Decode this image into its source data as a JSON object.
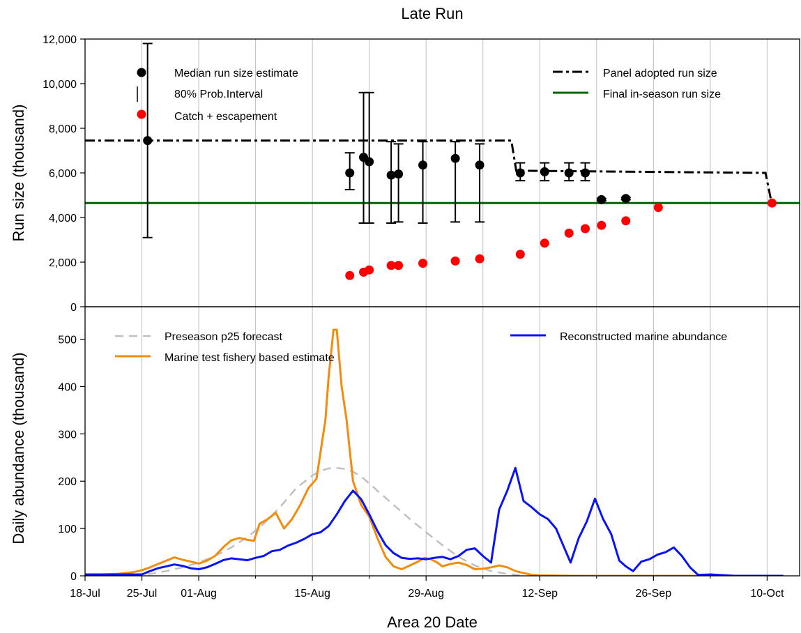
{
  "chart_data": {
    "title": "Late Run",
    "xlabel": "Area 20 Date",
    "x_ticks": [
      "18-Jul",
      "25-Jul",
      "01-Aug",
      "15-Aug",
      "29-Aug",
      "12-Sep",
      "26-Sep",
      "10-Oct"
    ],
    "x_tick_days": [
      0,
      7,
      14,
      28,
      42,
      56,
      70,
      84
    ],
    "x_range_days": [
      0,
      88
    ],
    "x_start_date": "18-Jul",
    "panels": [
      {
        "type": "errorbar-scatter-line",
        "ylabel": "Run size (thousand)",
        "ylim": [
          0,
          12000
        ],
        "y_ticks": [
          "0",
          "2,000",
          "4,000",
          "6,000",
          "8,000",
          "10,000",
          "12,000"
        ],
        "y_tick_values": [
          0,
          2000,
          4000,
          6000,
          8000,
          10000,
          12000
        ],
        "grid": "vertical",
        "legend_left": [
          "Median run size estimate",
          "80% Prob.Interval",
          "Catch + escapement"
        ],
        "legend_right": [
          "Panel adopted run size",
          "Final in-season run size"
        ],
        "median_estimates": [
          {
            "x": 7.7,
            "y": 7450,
            "lo": 3100,
            "hi": 11800
          },
          {
            "x": 32.6,
            "y": 6000,
            "lo": 5250,
            "hi": 6900
          },
          {
            "x": 34.3,
            "y": 6700,
            "lo": 3750,
            "hi": 9600
          },
          {
            "x": 35.0,
            "y": 6500,
            "lo": 3750,
            "hi": 9600
          },
          {
            "x": 37.7,
            "y": 5900,
            "lo": 3750,
            "hi": 7400
          },
          {
            "x": 38.6,
            "y": 5950,
            "lo": 3800,
            "hi": 7300
          },
          {
            "x": 41.6,
            "y": 6350,
            "lo": 3750,
            "hi": 7400
          },
          {
            "x": 45.6,
            "y": 6650,
            "lo": 3800,
            "hi": 7400
          },
          {
            "x": 48.6,
            "y": 6350,
            "lo": 3800,
            "hi": 7300
          },
          {
            "x": 53.6,
            "y": 6000,
            "lo": 5650,
            "hi": 6450
          },
          {
            "x": 56.6,
            "y": 6050,
            "lo": 5650,
            "hi": 6450
          },
          {
            "x": 59.6,
            "y": 6000,
            "lo": 5650,
            "hi": 6450
          },
          {
            "x": 61.6,
            "y": 6000,
            "lo": 5650,
            "hi": 6450
          },
          {
            "x": 63.6,
            "y": 4800,
            "lo": 4750,
            "hi": 4850
          },
          {
            "x": 66.6,
            "y": 4850,
            "lo": 4800,
            "hi": 4900
          }
        ],
        "catch_escapement": [
          {
            "x": 32.6,
            "y": 1400
          },
          {
            "x": 34.3,
            "y": 1550
          },
          {
            "x": 35.0,
            "y": 1650
          },
          {
            "x": 37.7,
            "y": 1850
          },
          {
            "x": 38.6,
            "y": 1850
          },
          {
            "x": 41.6,
            "y": 1950
          },
          {
            "x": 45.6,
            "y": 2050
          },
          {
            "x": 48.6,
            "y": 2150
          },
          {
            "x": 53.6,
            "y": 2350
          },
          {
            "x": 56.6,
            "y": 2850
          },
          {
            "x": 59.6,
            "y": 3300
          },
          {
            "x": 61.6,
            "y": 3500
          },
          {
            "x": 63.6,
            "y": 3650
          },
          {
            "x": 66.6,
            "y": 3850
          },
          {
            "x": 70.6,
            "y": 4450
          },
          {
            "x": 84.6,
            "y": 4650
          }
        ],
        "panel_adopted_run_size": [
          [
            0,
            7450
          ],
          [
            52.5,
            7450
          ],
          [
            53.1,
            6100
          ],
          [
            83.8,
            6000
          ],
          [
            84.5,
            4750
          ]
        ],
        "final_inseason_run_size": 4650
      },
      {
        "type": "line",
        "ylabel": "Daily abundance (thousand)",
        "ylim": [
          0,
          520
        ],
        "y_ticks": [
          "0",
          "100",
          "200",
          "300",
          "400",
          "500"
        ],
        "y_tick_values": [
          0,
          100,
          200,
          300,
          400,
          500
        ],
        "grid": "vertical",
        "series": [
          {
            "name": "Preseason p25 forecast",
            "color": "#c0c0c0",
            "dash": true,
            "points": [
              [
                6,
                2
              ],
              [
                8,
                4
              ],
              [
                10,
                10
              ],
              [
                12,
                18
              ],
              [
                14,
                28
              ],
              [
                16,
                42
              ],
              [
                18,
                60
              ],
              [
                20,
                82
              ],
              [
                22,
                110
              ],
              [
                24,
                145
              ],
              [
                26,
                185
              ],
              [
                28,
                212
              ],
              [
                29,
                222
              ],
              [
                30,
                227
              ],
              [
                31,
                228
              ],
              [
                32,
                226
              ],
              [
                33,
                220
              ],
              [
                34,
                210
              ],
              [
                36,
                180
              ],
              [
                38,
                150
              ],
              [
                40,
                120
              ],
              [
                42,
                92
              ],
              [
                44,
                65
              ],
              [
                46,
                40
              ],
              [
                48,
                22
              ],
              [
                50,
                10
              ],
              [
                52,
                4
              ],
              [
                54,
                1
              ]
            ]
          },
          {
            "name": "Marine test fishery based estimate",
            "color": "#f28c0f",
            "dash": false,
            "points": [
              [
                0,
                2
              ],
              [
                2,
                3
              ],
              [
                4,
                4
              ],
              [
                6,
                8
              ],
              [
                7,
                12
              ],
              [
                8,
                18
              ],
              [
                9,
                25
              ],
              [
                10,
                32
              ],
              [
                11,
                39
              ],
              [
                12,
                34
              ],
              [
                13,
                30
              ],
              [
                14,
                26
              ],
              [
                15,
                32
              ],
              [
                16,
                42
              ],
              [
                17,
                60
              ],
              [
                18,
                75
              ],
              [
                19,
                80
              ],
              [
                20,
                76
              ],
              [
                20.8,
                74
              ],
              [
                21.5,
                110
              ],
              [
                22.5,
                120
              ],
              [
                23.5,
                133
              ],
              [
                24.5,
                100
              ],
              [
                25.5,
                120
              ],
              [
                26.5,
                150
              ],
              [
                27.5,
                185
              ],
              [
                28.5,
                205
              ],
              [
                29.6,
                330
              ],
              [
                30,
                420
              ],
              [
                30.6,
                520
              ],
              [
                31,
                520
              ],
              [
                31.6,
                400
              ],
              [
                32.2,
                330
              ],
              [
                33,
                200
              ],
              [
                34,
                150
              ],
              [
                35,
                125
              ],
              [
                36,
                80
              ],
              [
                37,
                40
              ],
              [
                38,
                20
              ],
              [
                39,
                14
              ],
              [
                40,
                22
              ],
              [
                41,
                30
              ],
              [
                41.8,
                38
              ],
              [
                42.6,
                35
              ],
              [
                43.4,
                28
              ],
              [
                44,
                20
              ],
              [
                45,
                25
              ],
              [
                46,
                28
              ],
              [
                47,
                23
              ],
              [
                48,
                14
              ],
              [
                49,
                15
              ],
              [
                50,
                18
              ],
              [
                51,
                22
              ],
              [
                52,
                18
              ],
              [
                53,
                10
              ],
              [
                54,
                6
              ],
              [
                55,
                2
              ],
              [
                56,
                1
              ],
              [
                60,
                0
              ],
              [
                70,
                0
              ],
              [
                84,
                0
              ]
            ]
          },
          {
            "name": "Reconstructed marine abundance",
            "color": "#0a14f0",
            "dash": false,
            "points": [
              [
                0,
                3
              ],
              [
                5,
                3
              ],
              [
                7,
                3
              ],
              [
                8,
                10
              ],
              [
                9,
                16
              ],
              [
                10,
                20
              ],
              [
                11,
                24
              ],
              [
                12,
                21
              ],
              [
                13,
                16
              ],
              [
                14,
                14
              ],
              [
                15,
                18
              ],
              [
                16,
                25
              ],
              [
                17,
                33
              ],
              [
                18,
                37
              ],
              [
                19,
                35
              ],
              [
                20,
                33
              ],
              [
                21,
                38
              ],
              [
                22,
                42
              ],
              [
                23,
                52
              ],
              [
                24,
                55
              ],
              [
                25,
                64
              ],
              [
                26,
                70
              ],
              [
                27,
                78
              ],
              [
                28,
                88
              ],
              [
                29,
                92
              ],
              [
                30,
                105
              ],
              [
                31,
                130
              ],
              [
                32,
                158
              ],
              [
                33,
                180
              ],
              [
                34,
                162
              ],
              [
                35,
                130
              ],
              [
                36,
                95
              ],
              [
                37,
                65
              ],
              [
                38,
                48
              ],
              [
                39,
                38
              ],
              [
                40,
                36
              ],
              [
                41,
                37
              ],
              [
                42,
                35
              ],
              [
                43,
                38
              ],
              [
                44,
                40
              ],
              [
                45,
                35
              ],
              [
                46,
                42
              ],
              [
                47,
                55
              ],
              [
                48,
                58
              ],
              [
                49,
                42
              ],
              [
                50,
                28
              ],
              [
                51,
                140
              ],
              [
                52,
                180
              ],
              [
                53,
                228
              ],
              [
                54,
                158
              ],
              [
                55,
                145
              ],
              [
                56,
                130
              ],
              [
                57,
                120
              ],
              [
                58,
                100
              ],
              [
                59,
                60
              ],
              [
                59.8,
                28
              ],
              [
                60.8,
                80
              ],
              [
                61.8,
                115
              ],
              [
                62.8,
                163
              ],
              [
                63.8,
                120
              ],
              [
                64.8,
                88
              ],
              [
                65.8,
                32
              ],
              [
                66.6,
                20
              ],
              [
                67.5,
                10
              ],
              [
                68.5,
                30
              ],
              [
                69.5,
                35
              ],
              [
                70.5,
                45
              ],
              [
                71.5,
                50
              ],
              [
                72.5,
                60
              ],
              [
                73.5,
                42
              ],
              [
                74.5,
                18
              ],
              [
                75.5,
                2
              ],
              [
                77,
                3
              ],
              [
                80,
                0
              ],
              [
                86,
                0
              ]
            ]
          }
        ]
      }
    ]
  },
  "colors": {
    "median": "#000000",
    "catch": "#ff0000",
    "panel_line": "#000000",
    "final_line": "#006400",
    "grid": "#bebebe"
  }
}
